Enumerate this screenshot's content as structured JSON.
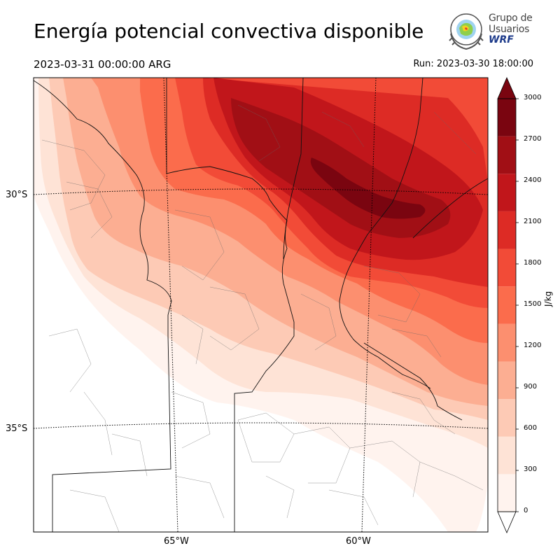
{
  "header": {
    "title": "Energía potencial convectiva disponible",
    "valid_time": "2023-03-31 00:00:00 ARG",
    "run_time": "Run: 2023-03-30 18:00:00"
  },
  "logo": {
    "line1": "Grupo de",
    "line2": "Usuarios",
    "line3": "WRF"
  },
  "map": {
    "field": "CAPE",
    "lat_labels": [
      "30°S",
      "35°S"
    ],
    "lon_labels": [
      "65°W",
      "60°W"
    ]
  },
  "colorbar": {
    "unit": "J/kg",
    "ticks": [
      "0",
      "300",
      "600",
      "900",
      "1200",
      "1500",
      "1800",
      "2100",
      "2400",
      "2700",
      "3000"
    ],
    "levels": [
      0,
      150,
      300,
      450,
      600,
      750,
      900,
      1050,
      1200,
      1350,
      1500,
      1650,
      1800,
      1950,
      2100,
      2250,
      2400,
      2550,
      2700,
      2850,
      3000
    ],
    "colors": [
      "#fff3ee",
      "#fee3d6",
      "#fdcab5",
      "#fcae92",
      "#fc8f6f",
      "#fb6c4c",
      "#f24b37",
      "#dd2b25",
      "#c1161b",
      "#a10f15",
      "#7a0510"
    ],
    "extend": "both"
  }
}
